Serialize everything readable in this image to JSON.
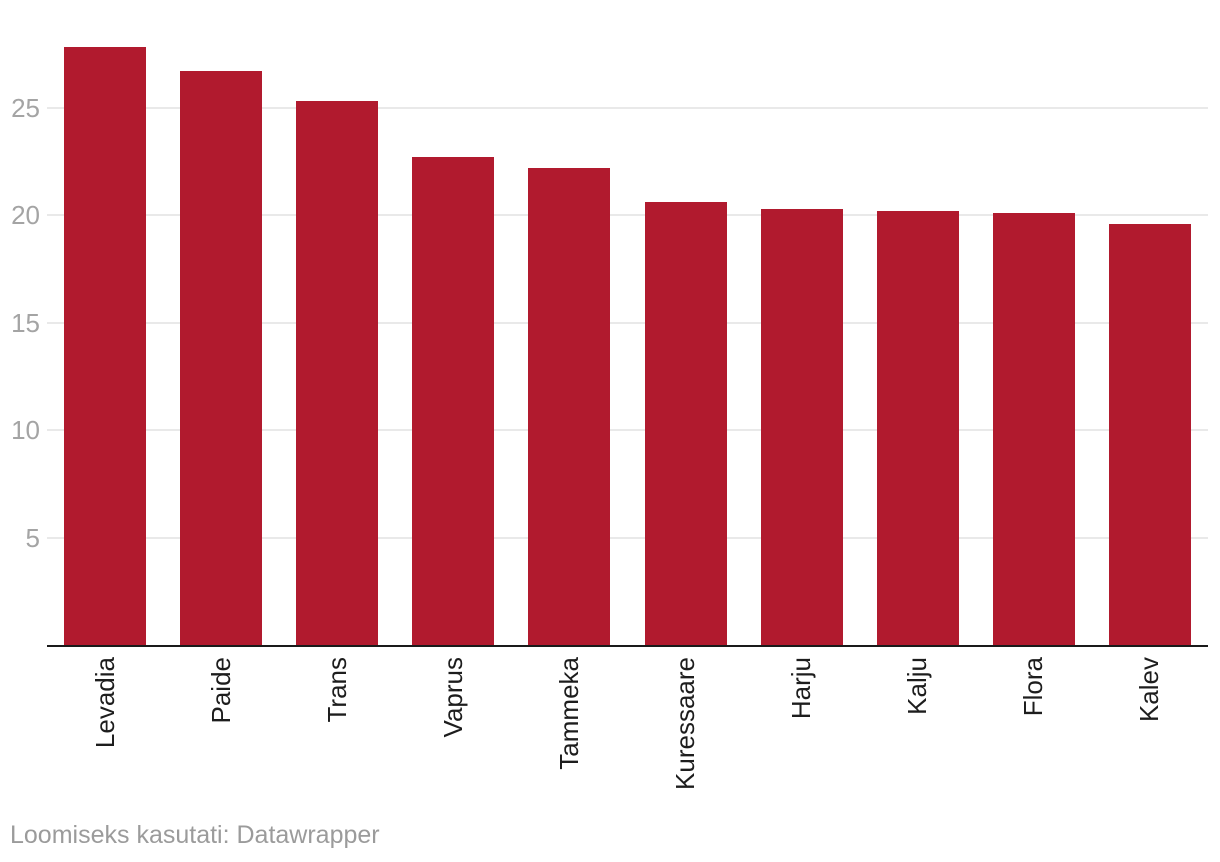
{
  "chart_data": {
    "type": "bar",
    "categories": [
      "Levadia",
      "Paide",
      "Trans",
      "Vaprus",
      "Tammeka",
      "Kuressaare",
      "Harju",
      "Kalju",
      "Flora",
      "Kalev"
    ],
    "values": [
      27.8,
      26.7,
      25.3,
      22.7,
      22.2,
      20.6,
      20.3,
      20.2,
      20.1,
      19.6
    ],
    "title": "",
    "xlabel": "",
    "ylabel": "",
    "ylim": [
      0,
      30
    ],
    "yticks": [
      5,
      10,
      15,
      20,
      25
    ],
    "grid": "horizontal",
    "legend": "none",
    "bar_color": "#b11a2e",
    "axis_line_color": "#1a1a1a",
    "gridline_color": "#e9e9e9",
    "ytick_label_color": "#a4a4a4",
    "xtick_label_color": "#1d1d1d"
  },
  "footer": {
    "attribution": "Loomiseks kasutati: Datawrapper",
    "color": "#9b9b9b"
  }
}
